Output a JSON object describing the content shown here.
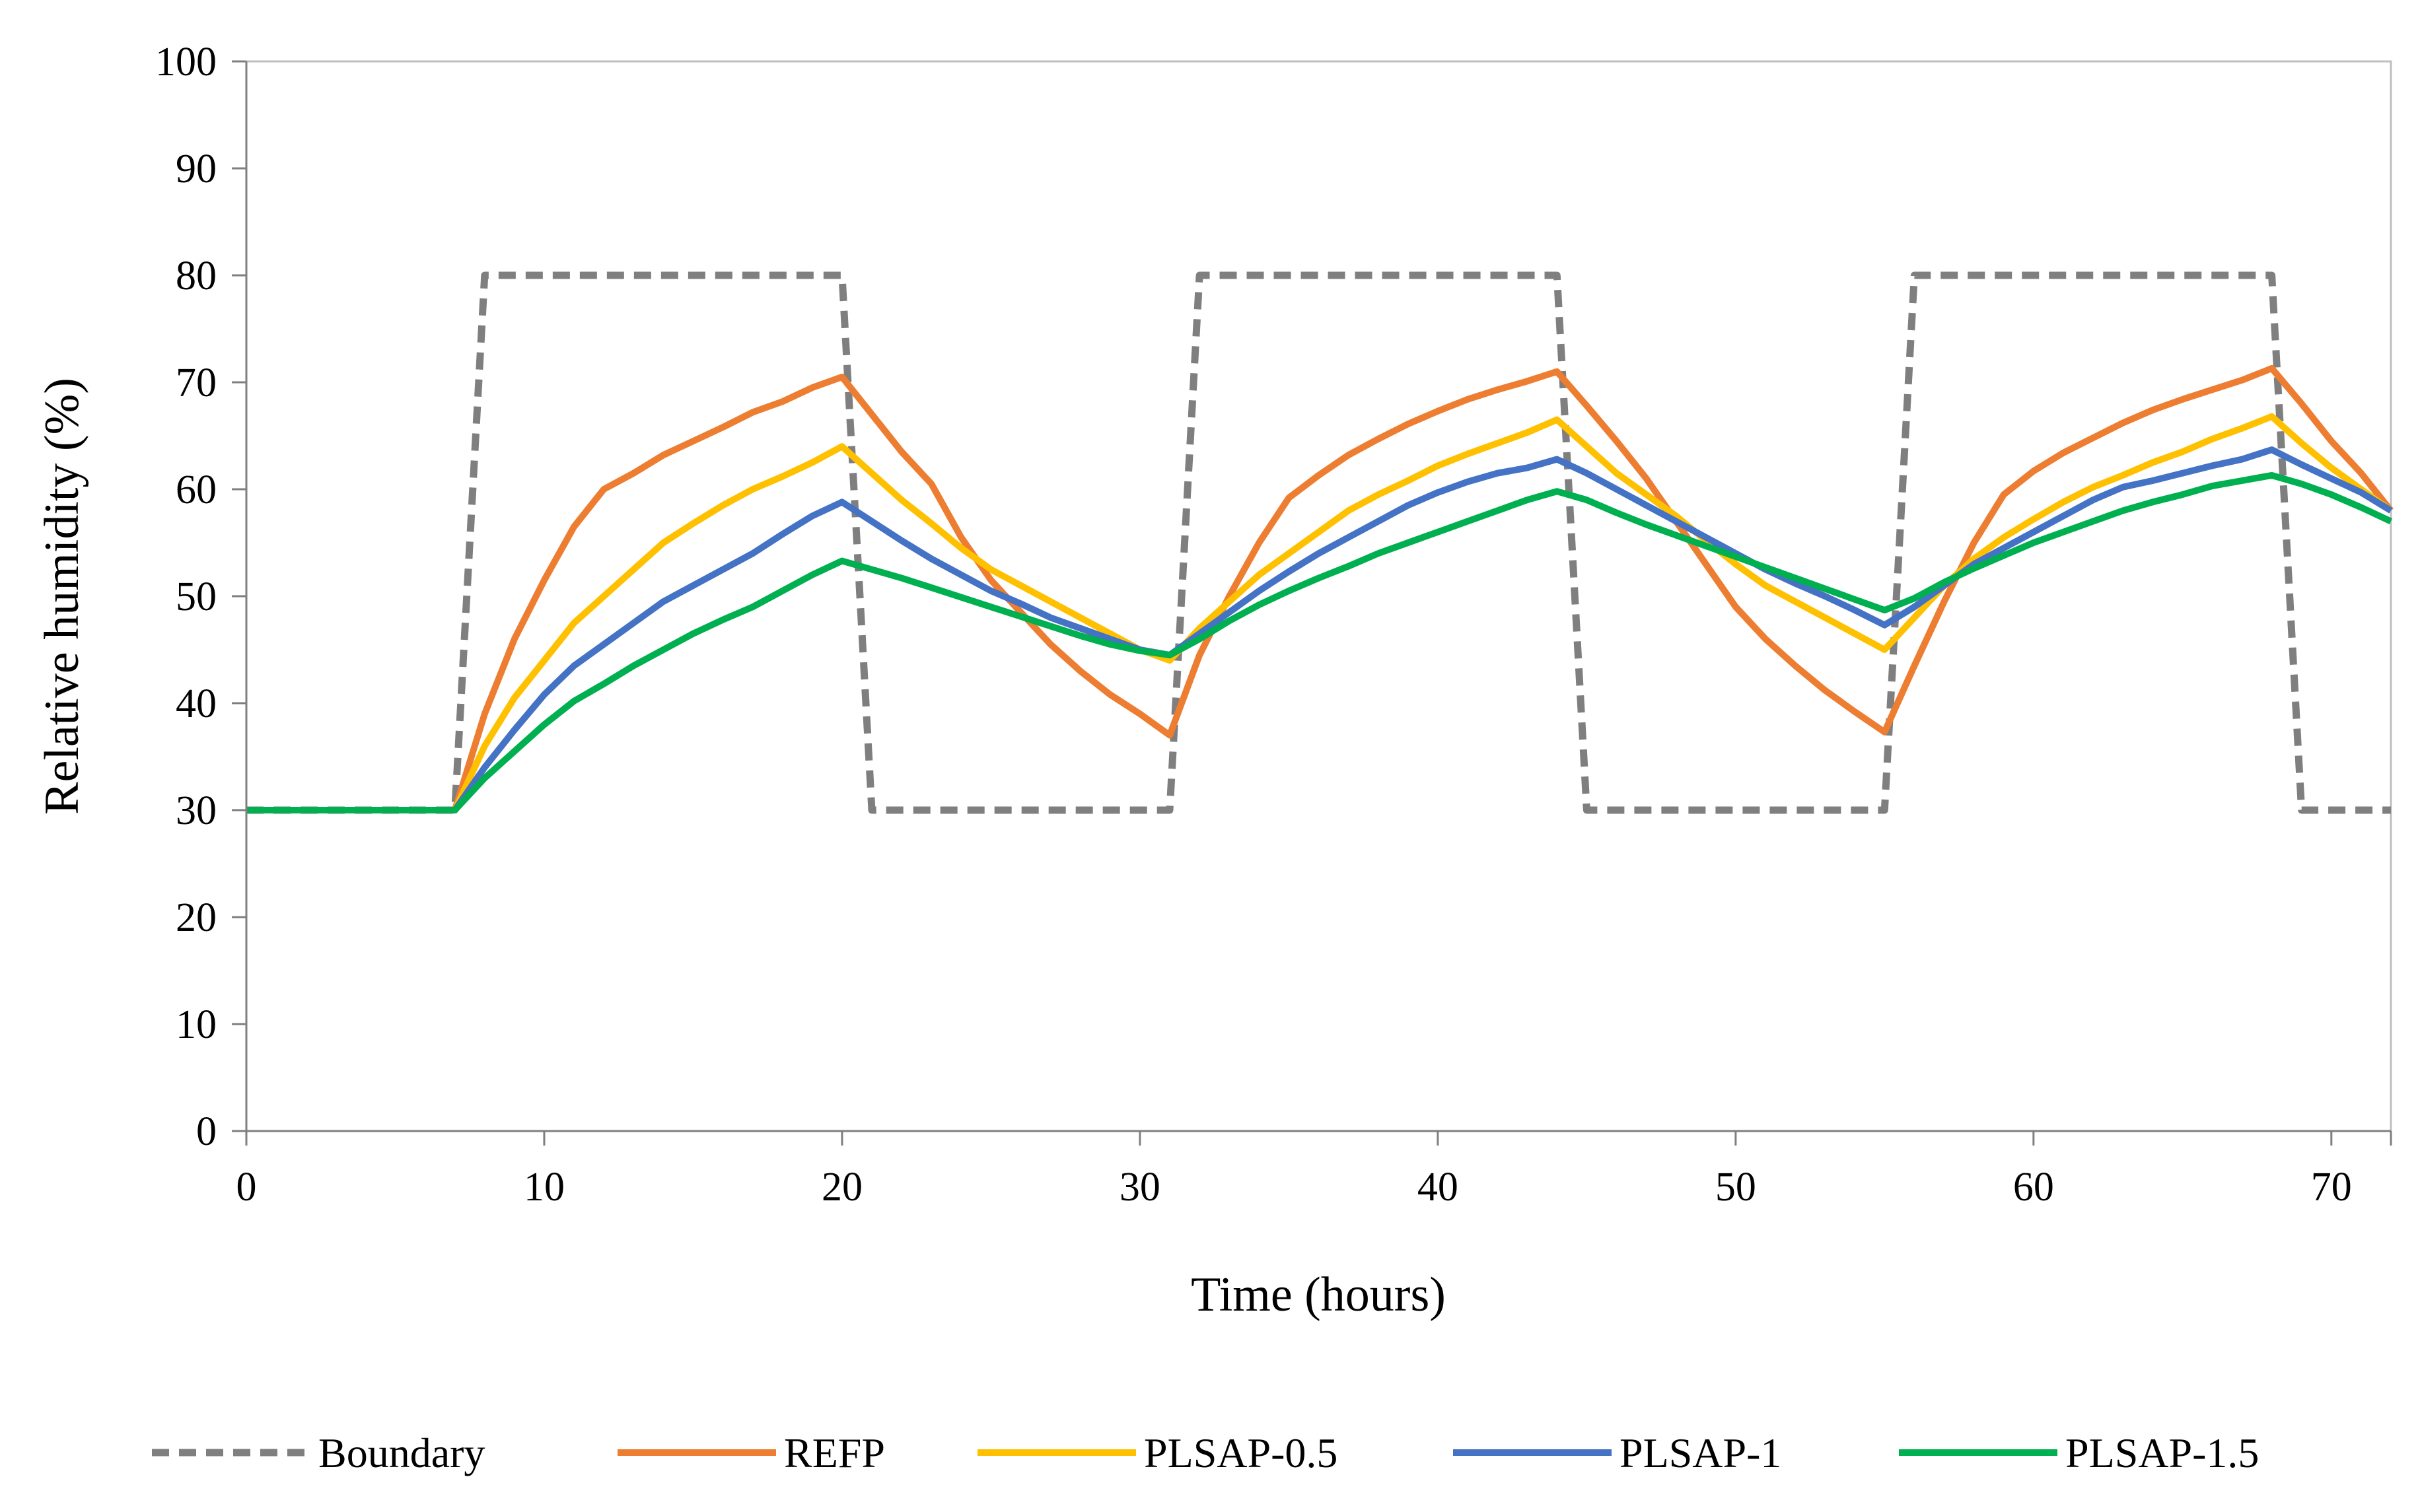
{
  "chart_data": {
    "type": "line",
    "title": "",
    "xlabel": "Time (hours)",
    "ylabel": "Relative humidity (%)",
    "xlim": [
      0,
      72
    ],
    "ylim": [
      0,
      100
    ],
    "xticks": [
      0,
      10,
      20,
      30,
      40,
      50,
      60,
      70
    ],
    "yticks": [
      0,
      10,
      20,
      30,
      40,
      50,
      60,
      70,
      80,
      90,
      100
    ],
    "grid": false,
    "legend_position": "bottom",
    "series": [
      {
        "name": "Boundary",
        "color": "#7f7f7f",
        "dash": true,
        "points": [
          [
            0,
            30
          ],
          [
            7,
            30
          ],
          [
            8,
            80
          ],
          [
            20,
            80
          ],
          [
            21,
            30
          ],
          [
            31,
            30
          ],
          [
            32,
            80
          ],
          [
            44,
            80
          ],
          [
            45,
            30
          ],
          [
            55,
            30
          ],
          [
            56,
            80
          ],
          [
            68,
            80
          ],
          [
            69,
            30
          ],
          [
            72,
            30
          ]
        ]
      },
      {
        "name": "REFP",
        "color": "#ed7d31",
        "dash": false,
        "points": [
          [
            0,
            30
          ],
          [
            7,
            30
          ],
          [
            8,
            39
          ],
          [
            9,
            46
          ],
          [
            10,
            51.5
          ],
          [
            11,
            56.5
          ],
          [
            12,
            60
          ],
          [
            13,
            61.5
          ],
          [
            14,
            63.2
          ],
          [
            15,
            64.5
          ],
          [
            16,
            65.8
          ],
          [
            17,
            67.2
          ],
          [
            18,
            68.2
          ],
          [
            19,
            69.5
          ],
          [
            20,
            70.5
          ],
          [
            21,
            67
          ],
          [
            22,
            63.5
          ],
          [
            23,
            60.5
          ],
          [
            24,
            55.5
          ],
          [
            25,
            51.5
          ],
          [
            26,
            48.5
          ],
          [
            27,
            45.5
          ],
          [
            28,
            43
          ],
          [
            29,
            40.8
          ],
          [
            30,
            39
          ],
          [
            31,
            37
          ],
          [
            32,
            44.5
          ],
          [
            33,
            50
          ],
          [
            34,
            55
          ],
          [
            35,
            59.2
          ],
          [
            36,
            61.3
          ],
          [
            37,
            63.2
          ],
          [
            38,
            64.7
          ],
          [
            39,
            66.1
          ],
          [
            40,
            67.3
          ],
          [
            41,
            68.4
          ],
          [
            42,
            69.3
          ],
          [
            43,
            70.1
          ],
          [
            44,
            71
          ],
          [
            45,
            67.8
          ],
          [
            46,
            64.5
          ],
          [
            47,
            61
          ],
          [
            48,
            57
          ],
          [
            49,
            53
          ],
          [
            50,
            49
          ],
          [
            51,
            46
          ],
          [
            52,
            43.5
          ],
          [
            53,
            41.2
          ],
          [
            54,
            39.2
          ],
          [
            55,
            37.3
          ],
          [
            56,
            43.5
          ],
          [
            57,
            49.5
          ],
          [
            58,
            55
          ],
          [
            59,
            59.5
          ],
          [
            60,
            61.7
          ],
          [
            61,
            63.4
          ],
          [
            62,
            64.8
          ],
          [
            63,
            66.2
          ],
          [
            64,
            67.4
          ],
          [
            65,
            68.4
          ],
          [
            66,
            69.3
          ],
          [
            67,
            70.2
          ],
          [
            68,
            71.3
          ],
          [
            69,
            68
          ],
          [
            70,
            64.5
          ],
          [
            71,
            61.5
          ],
          [
            72,
            58
          ]
        ]
      },
      {
        "name": "PLSAP-0.5",
        "color": "#ffc000",
        "dash": false,
        "points": [
          [
            0,
            30
          ],
          [
            7,
            30
          ],
          [
            8,
            36
          ],
          [
            9,
            40.5
          ],
          [
            10,
            44
          ],
          [
            11,
            47.5
          ],
          [
            12,
            50
          ],
          [
            13,
            52.5
          ],
          [
            14,
            55
          ],
          [
            15,
            56.8
          ],
          [
            16,
            58.5
          ],
          [
            17,
            60
          ],
          [
            18,
            61.2
          ],
          [
            19,
            62.5
          ],
          [
            20,
            64
          ],
          [
            21,
            61.5
          ],
          [
            22,
            59
          ],
          [
            23,
            56.8
          ],
          [
            24,
            54.5
          ],
          [
            25,
            52.5
          ],
          [
            26,
            51
          ],
          [
            27,
            49.5
          ],
          [
            28,
            48
          ],
          [
            29,
            46.5
          ],
          [
            30,
            45
          ],
          [
            31,
            44
          ],
          [
            32,
            47
          ],
          [
            33,
            49.5
          ],
          [
            34,
            52
          ],
          [
            35,
            54
          ],
          [
            36,
            56
          ],
          [
            37,
            58
          ],
          [
            38,
            59.5
          ],
          [
            39,
            60.8
          ],
          [
            40,
            62.2
          ],
          [
            41,
            63.3
          ],
          [
            42,
            64.3
          ],
          [
            43,
            65.3
          ],
          [
            44,
            66.5
          ],
          [
            45,
            64
          ],
          [
            46,
            61.5
          ],
          [
            47,
            59.5
          ],
          [
            48,
            57.5
          ],
          [
            49,
            55.2
          ],
          [
            50,
            53
          ],
          [
            51,
            51
          ],
          [
            52,
            49.5
          ],
          [
            53,
            48
          ],
          [
            54,
            46.5
          ],
          [
            55,
            45
          ],
          [
            56,
            48
          ],
          [
            57,
            51
          ],
          [
            58,
            53.5
          ],
          [
            59,
            55.5
          ],
          [
            60,
            57.2
          ],
          [
            61,
            58.8
          ],
          [
            62,
            60.2
          ],
          [
            63,
            61.3
          ],
          [
            64,
            62.5
          ],
          [
            65,
            63.5
          ],
          [
            66,
            64.7
          ],
          [
            67,
            65.7
          ],
          [
            68,
            66.8
          ],
          [
            69,
            64.3
          ],
          [
            70,
            62
          ],
          [
            71,
            60
          ],
          [
            72,
            58
          ]
        ]
      },
      {
        "name": "PLSAP-1",
        "color": "#4472c4",
        "dash": false,
        "points": [
          [
            0,
            30
          ],
          [
            7,
            30
          ],
          [
            8,
            34
          ],
          [
            9,
            37.5
          ],
          [
            10,
            40.8
          ],
          [
            11,
            43.5
          ],
          [
            12,
            45.5
          ],
          [
            13,
            47.5
          ],
          [
            14,
            49.5
          ],
          [
            15,
            51
          ],
          [
            16,
            52.5
          ],
          [
            17,
            54
          ],
          [
            18,
            55.8
          ],
          [
            19,
            57.5
          ],
          [
            20,
            58.8
          ],
          [
            21,
            57
          ],
          [
            22,
            55.2
          ],
          [
            23,
            53.5
          ],
          [
            24,
            52
          ],
          [
            25,
            50.5
          ],
          [
            26,
            49.3
          ],
          [
            27,
            48
          ],
          [
            28,
            47
          ],
          [
            29,
            46
          ],
          [
            30,
            45
          ],
          [
            31,
            44.5
          ],
          [
            32,
            46.5
          ],
          [
            33,
            48.5
          ],
          [
            34,
            50.5
          ],
          [
            35,
            52.3
          ],
          [
            36,
            54
          ],
          [
            37,
            55.5
          ],
          [
            38,
            57
          ],
          [
            39,
            58.5
          ],
          [
            40,
            59.7
          ],
          [
            41,
            60.7
          ],
          [
            42,
            61.5
          ],
          [
            43,
            62
          ],
          [
            44,
            62.8
          ],
          [
            45,
            61.5
          ],
          [
            46,
            60
          ],
          [
            47,
            58.5
          ],
          [
            48,
            57
          ],
          [
            49,
            55.5
          ],
          [
            50,
            54
          ],
          [
            51,
            52.5
          ],
          [
            52,
            51.2
          ],
          [
            53,
            50
          ],
          [
            54,
            48.7
          ],
          [
            55,
            47.3
          ],
          [
            56,
            49
          ],
          [
            57,
            51
          ],
          [
            58,
            53
          ],
          [
            59,
            54.5
          ],
          [
            60,
            56
          ],
          [
            61,
            57.5
          ],
          [
            62,
            59
          ],
          [
            63,
            60.2
          ],
          [
            64,
            60.8
          ],
          [
            65,
            61.5
          ],
          [
            66,
            62.2
          ],
          [
            67,
            62.8
          ],
          [
            68,
            63.7
          ],
          [
            69,
            62.3
          ],
          [
            70,
            61
          ],
          [
            71,
            59.7
          ],
          [
            72,
            58
          ]
        ]
      },
      {
        "name": "PLSAP-1.5",
        "color": "#00b050",
        "dash": false,
        "points": [
          [
            0,
            30
          ],
          [
            7,
            30
          ],
          [
            8,
            33
          ],
          [
            9,
            35.5
          ],
          [
            10,
            38
          ],
          [
            11,
            40.2
          ],
          [
            12,
            41.8
          ],
          [
            13,
            43.5
          ],
          [
            14,
            45
          ],
          [
            15,
            46.5
          ],
          [
            16,
            47.8
          ],
          [
            17,
            49
          ],
          [
            18,
            50.5
          ],
          [
            19,
            52
          ],
          [
            20,
            53.3
          ],
          [
            21,
            52.5
          ],
          [
            22,
            51.7
          ],
          [
            23,
            50.8
          ],
          [
            24,
            49.9
          ],
          [
            25,
            49
          ],
          [
            26,
            48.1
          ],
          [
            27,
            47.2
          ],
          [
            28,
            46.3
          ],
          [
            29,
            45.5
          ],
          [
            30,
            44.9
          ],
          [
            31,
            44.5
          ],
          [
            32,
            46
          ],
          [
            33,
            47.7
          ],
          [
            34,
            49.2
          ],
          [
            35,
            50.5
          ],
          [
            36,
            51.7
          ],
          [
            37,
            52.8
          ],
          [
            38,
            54
          ],
          [
            39,
            55
          ],
          [
            40,
            56
          ],
          [
            41,
            57
          ],
          [
            42,
            58
          ],
          [
            43,
            59
          ],
          [
            44,
            59.8
          ],
          [
            45,
            59
          ],
          [
            46,
            57.8
          ],
          [
            47,
            56.7
          ],
          [
            48,
            55.7
          ],
          [
            49,
            54.7
          ],
          [
            50,
            53.7
          ],
          [
            51,
            52.7
          ],
          [
            52,
            51.7
          ],
          [
            53,
            50.7
          ],
          [
            54,
            49.7
          ],
          [
            55,
            48.7
          ],
          [
            56,
            49.8
          ],
          [
            57,
            51.3
          ],
          [
            58,
            52.6
          ],
          [
            59,
            53.8
          ],
          [
            60,
            55
          ],
          [
            61,
            56
          ],
          [
            62,
            57
          ],
          [
            63,
            58
          ],
          [
            64,
            58.8
          ],
          [
            65,
            59.5
          ],
          [
            66,
            60.3
          ],
          [
            67,
            60.8
          ],
          [
            68,
            61.3
          ],
          [
            69,
            60.5
          ],
          [
            70,
            59.5
          ],
          [
            71,
            58.3
          ],
          [
            72,
            57
          ]
        ]
      }
    ]
  }
}
